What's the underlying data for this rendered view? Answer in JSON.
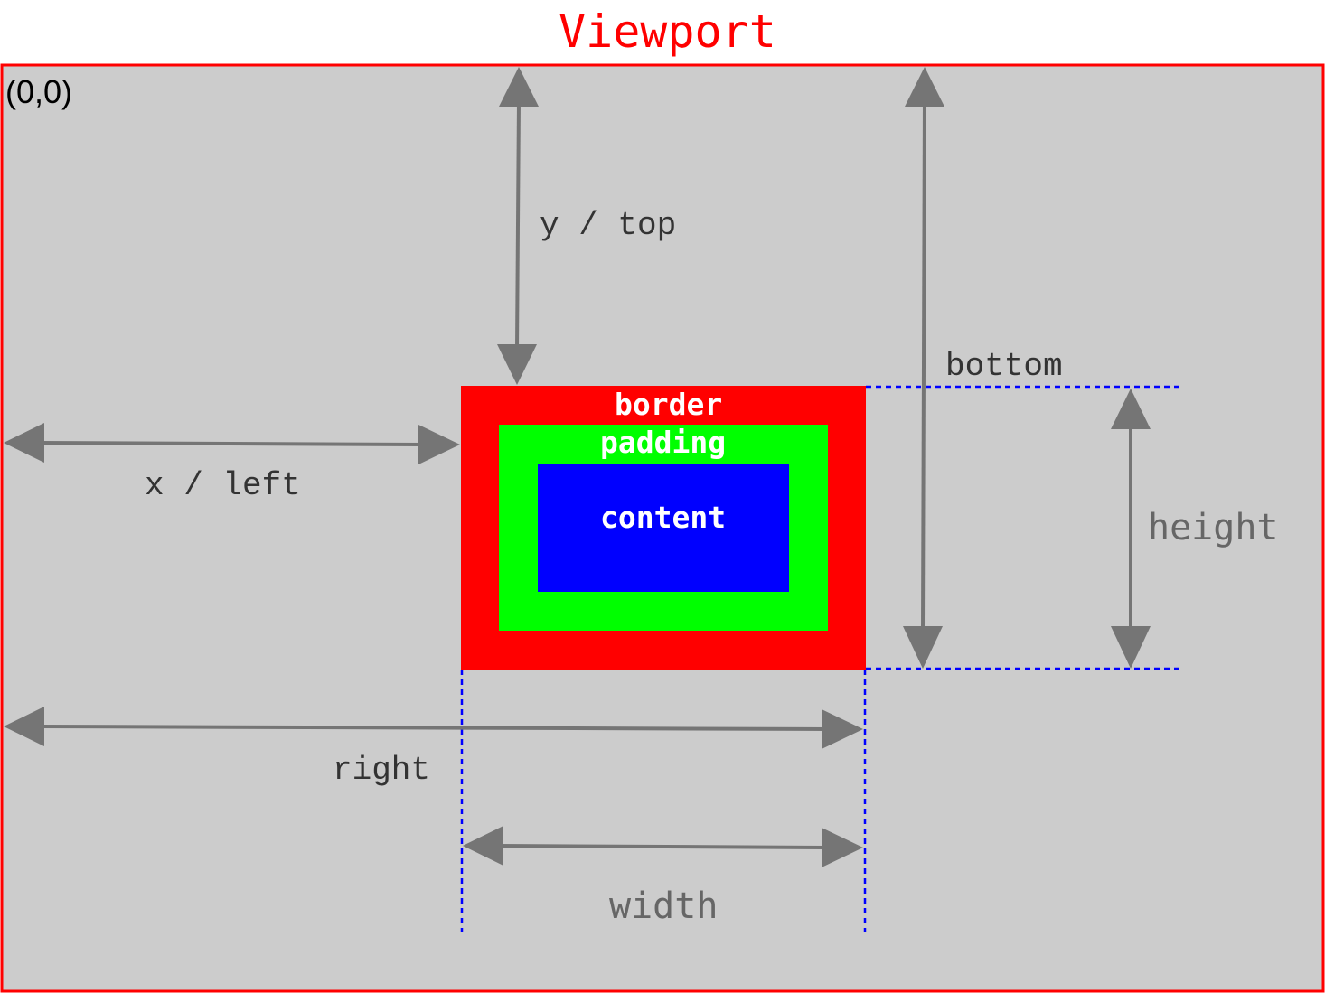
{
  "title": "Viewport",
  "origin": "(0,0)",
  "labels": {
    "y_top": "y / top",
    "x_left": "x / left",
    "bottom": "bottom",
    "height": "height",
    "right": "right",
    "width": "width"
  },
  "box": {
    "border": "border",
    "padding": "padding",
    "content": "content"
  },
  "colors": {
    "viewport_border": "#ff0000",
    "viewport_fill": "#cccccc",
    "border_fill": "#ff0000",
    "padding_fill": "#00ff00",
    "content_fill": "#0000ff",
    "arrow": "#757575",
    "guide_line": "#0000ff",
    "title": "#ff0000"
  }
}
